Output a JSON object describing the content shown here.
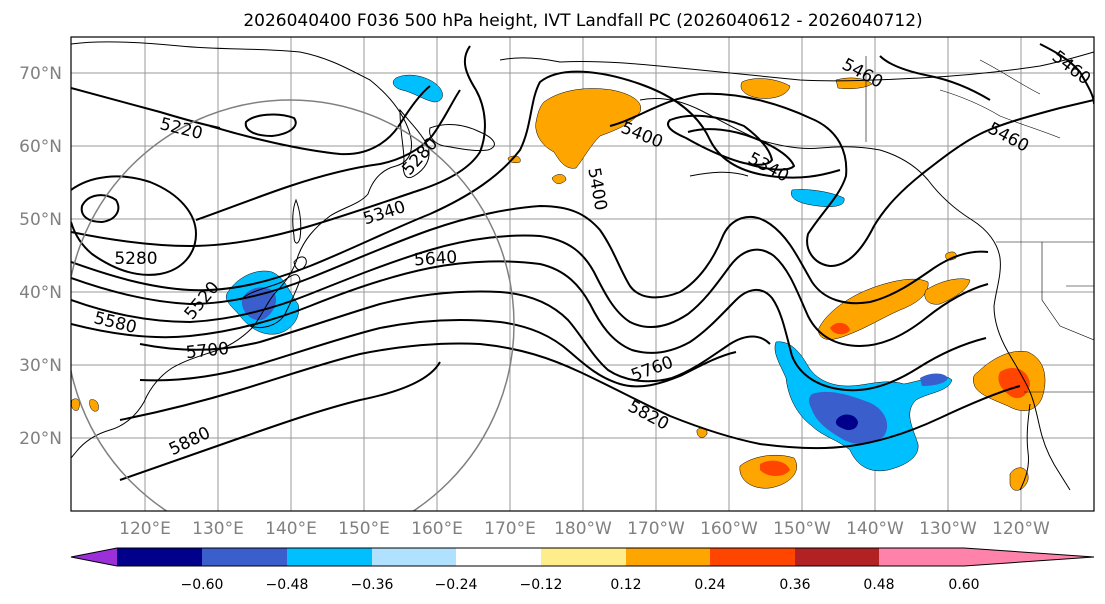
{
  "title": "2026040400 F036 500 hPa height, IVT Landfall PC (2026040612 - 2026040712)",
  "map": {
    "lat_labels": [
      "70°N",
      "60°N",
      "50°N",
      "40°N",
      "30°N",
      "20°N"
    ],
    "lon_labels": [
      "120°E",
      "130°E",
      "140°E",
      "150°E",
      "160°E",
      "170°E",
      "180°W",
      "170°W",
      "160°W",
      "150°W",
      "140°W",
      "130°W",
      "120°W"
    ],
    "contour_labels": [
      "5220",
      "5280",
      "5280",
      "5340",
      "5340",
      "5400",
      "5400",
      "5460",
      "5460",
      "5460",
      "5520",
      "5580",
      "5640",
      "5700",
      "5760",
      "5820",
      "5880"
    ]
  },
  "colorbar": {
    "colors": [
      "#9b30d9",
      "#00008b",
      "#3a5fcd",
      "#00bfff",
      "#b0e2ff",
      "#ffffff",
      "#ffec8b",
      "#ffa500",
      "#ff4500",
      "#b22222",
      "#ff82ab"
    ],
    "tick_labels": [
      "−0.60",
      "−0.48",
      "−0.36",
      "−0.24",
      "−0.12",
      "0.12",
      "0.24",
      "0.36",
      "0.48",
      "0.60"
    ]
  }
}
